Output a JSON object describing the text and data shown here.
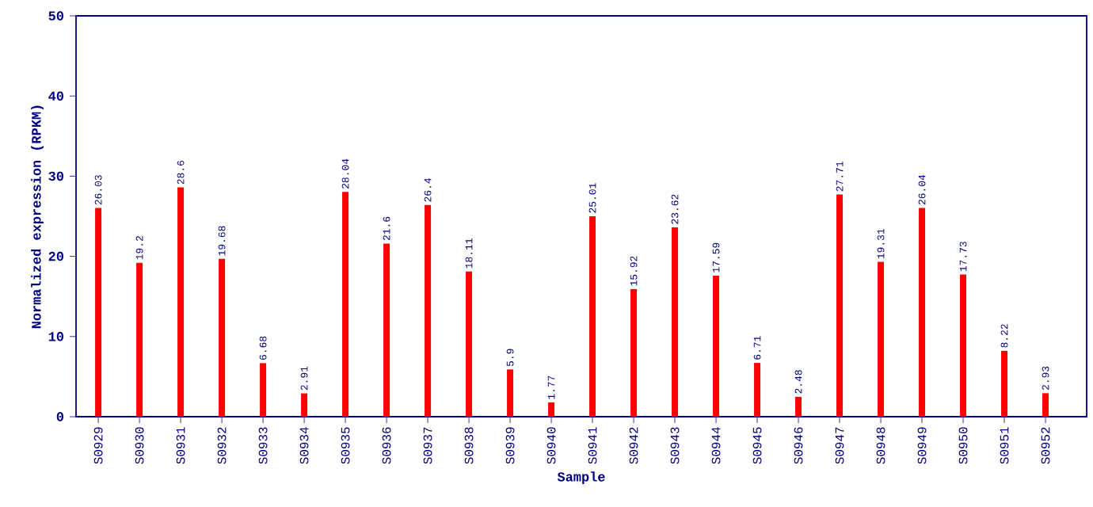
{
  "chart_data": {
    "type": "bar",
    "xlabel": "Sample",
    "ylabel": "Normalized expression (RPKM)",
    "categories": [
      "S0929",
      "S0930",
      "S0931",
      "S0932",
      "S0933",
      "S0934",
      "S0935",
      "S0936",
      "S0937",
      "S0938",
      "S0939",
      "S0940",
      "S0941",
      "S0942",
      "S0943",
      "S0944",
      "S0945",
      "S0946",
      "S0947",
      "S0948",
      "S0949",
      "S0950",
      "S0951",
      "S0952"
    ],
    "values": [
      26.03,
      19.2,
      28.6,
      19.68,
      6.68,
      2.91,
      28.04,
      21.6,
      26.4,
      18.11,
      5.9,
      1.77,
      25.01,
      15.92,
      23.62,
      17.59,
      6.71,
      2.48,
      27.71,
      19.31,
      26.04,
      17.73,
      8.22,
      2.93
    ],
    "value_labels": [
      "26.03",
      "19.2",
      "28.6",
      "19.68",
      "6.68",
      "2.91",
      "28.04",
      "21.6",
      "26.4",
      "18.11",
      "5.9",
      "1.77",
      "25.01",
      "15.92",
      "23.62",
      "17.59",
      "6.71",
      "2.48",
      "27.71",
      "19.31",
      "26.04",
      "17.73",
      "8.22",
      "2.93"
    ],
    "color": "#ff0000",
    "ylim": [
      0,
      50
    ],
    "yticks": [
      0,
      10,
      20,
      30,
      40,
      50
    ],
    "grid": false
  }
}
